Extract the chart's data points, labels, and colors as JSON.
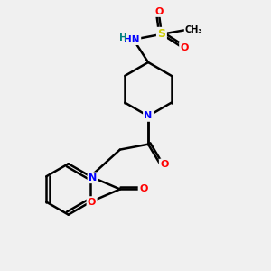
{
  "bg_color": "#f0f0f0",
  "atom_colors": {
    "C": "#000000",
    "N": "#0000ff",
    "O": "#ff0000",
    "S": "#cccc00",
    "H": "#008080"
  },
  "bond_color": "#000000",
  "bond_width": 1.8,
  "figsize": [
    3.0,
    3.0
  ],
  "dpi": 100,
  "xlim": [
    0,
    10
  ],
  "ylim": [
    0,
    10
  ]
}
